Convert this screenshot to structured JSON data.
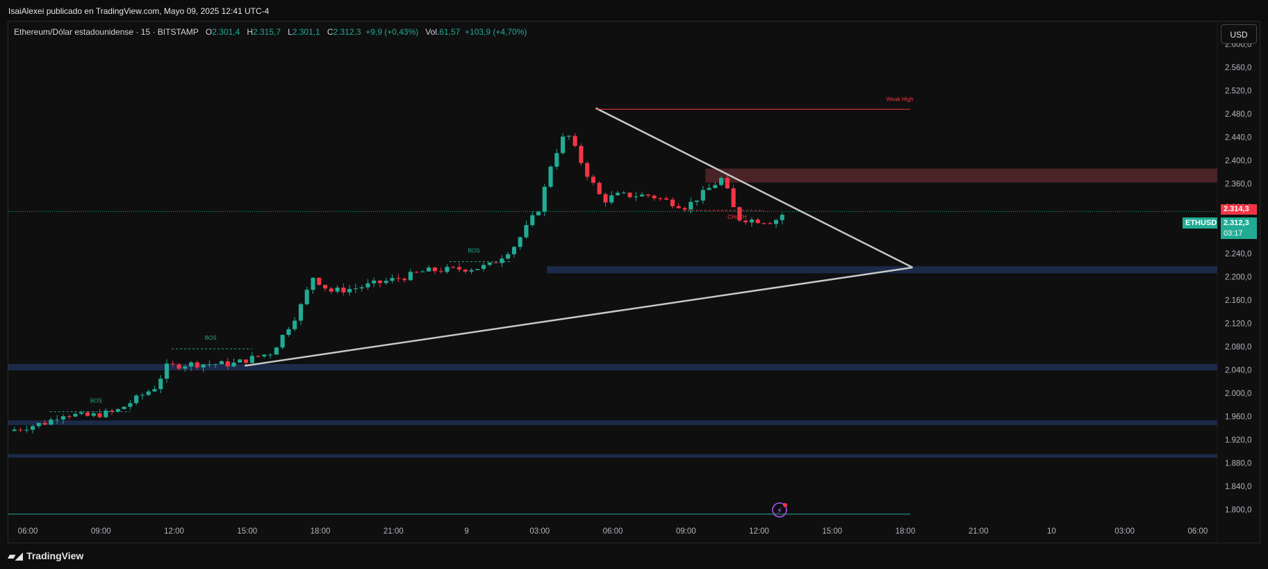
{
  "header": {
    "published_text": "IsaiAlexei publicado en TradingView.com, Mayo 09, 2025 12:41 UTC-4"
  },
  "legend": {
    "title": "Ethereum/Dólar estadounidense · 15 · BITSTAMP",
    "o_label": "O",
    "o_value": "2.301,4",
    "h_label": "H",
    "h_value": "2.315,7",
    "l_label": "L",
    "l_value": "2.301,1",
    "c_label": "C",
    "c_value": "2.312,3",
    "change": "+9,9 (+0,43%)",
    "vol_label": "Vol.",
    "vol_value": "61,57",
    "vol_change": "+103,9 (+4,70%)"
  },
  "currency_button": "USD",
  "price_tags": {
    "red_value": "2.314,3",
    "symbol": "ETHUSD",
    "last_value": "2.312,3",
    "countdown": "03:17"
  },
  "footer": {
    "brand": "TradingView"
  },
  "colors": {
    "up": "#22ab94",
    "down": "#f23645",
    "zone_blue": "#1c2a4a",
    "zone_red": "#4a2326",
    "trendline": "#c8c8c8"
  },
  "chart_data": {
    "type": "candlestick",
    "symbol": "ETHUSD",
    "interval": "15",
    "ylim": [
      1780,
      2640
    ],
    "y_ticks": [
      "2.600,0",
      "2.560,0",
      "2.520,0",
      "2.480,0",
      "2.440,0",
      "2.400,0",
      "2.360,0",
      "2.320,0",
      "2.280,0",
      "2.240,0",
      "2.200,0",
      "2.160,0",
      "2.120,0",
      "2.080,0",
      "2.040,0",
      "2.000,0",
      "1.960,0",
      "1.920,0",
      "1.880,0",
      "1.840,0",
      "1.800,0"
    ],
    "y_tick_values": [
      2600,
      2560,
      2520,
      2480,
      2440,
      2400,
      2360,
      2320,
      2280,
      2240,
      2200,
      2160,
      2120,
      2080,
      2040,
      2000,
      1960,
      1920,
      1880,
      1840,
      1800
    ],
    "x_ticks": [
      "06:00",
      "09:00",
      "12:00",
      "15:00",
      "18:00",
      "21:00",
      "9",
      "03:00",
      "06:00",
      "09:00",
      "12:00",
      "15:00",
      "18:00",
      "21:00",
      "10",
      "03:00",
      "06:00"
    ],
    "x_tick_hours": [
      6,
      9,
      12,
      15,
      18,
      21,
      24,
      27,
      30,
      33,
      36,
      39,
      42,
      45,
      48,
      51,
      54
    ],
    "x_range_hours": [
      5.2,
      54.8
    ],
    "close_path_hours": [
      5.2,
      6.8,
      7.4,
      8.4,
      9.6,
      11.2,
      11.7,
      12.6,
      14.4,
      15.2,
      16,
      17.1,
      17.7,
      18.4,
      19.4,
      21.5,
      22.3,
      24.4,
      25,
      26,
      27,
      27.5,
      28.1,
      28.9,
      29.6,
      30.1,
      30.5,
      31.5,
      33,
      34.5,
      35.1,
      36.6,
      37.1
    ],
    "close_path_values": [
      1935,
      1950,
      1965,
      1960,
      1968,
      2010,
      2045,
      2050,
      2050,
      2060,
      2070,
      2140,
      2200,
      2175,
      2180,
      2200,
      2210,
      2215,
      2220,
      2255,
      2320,
      2400,
      2450,
      2380,
      2330,
      2340,
      2340,
      2340,
      2320,
      2370,
      2300,
      2295,
      2312.3
    ],
    "candle_step_hours": 0.25,
    "last_price": 2312.3,
    "zones": [
      {
        "kind": "supply",
        "from_hours": 33.8,
        "y_low": 2362,
        "y_high": 2386
      },
      {
        "kind": "demand",
        "from_hours": 27.3,
        "y_low": 2206,
        "y_high": 2218
      },
      {
        "kind": "demand",
        "from_hours": 5.2,
        "y_low": 2039,
        "y_high": 2050
      },
      {
        "kind": "demand",
        "from_hours": 5.2,
        "y_low": 1945,
        "y_high": 1953
      },
      {
        "kind": "demand",
        "from_hours": 5.2,
        "y_low": 1889,
        "y_high": 1895
      }
    ],
    "trendlines": [
      {
        "from": [
          29.3,
          2490
        ],
        "to": [
          42.3,
          2216
        ]
      },
      {
        "from": [
          14.9,
          2047
        ],
        "to": [
          42.3,
          2216
        ]
      }
    ],
    "weak_high": {
      "label": "Weak High",
      "value": 2488,
      "from_hours": 29.3,
      "to_hours": 42.2
    },
    "bos_labels": [
      {
        "label": "BOS",
        "x_hours": 8.8,
        "value": 1968,
        "line_from": 6.9,
        "line_to": 10.2
      },
      {
        "label": "BOS",
        "x_hours": 13.5,
        "value": 2076,
        "line_from": 11.9,
        "line_to": 15.2
      },
      {
        "label": "BOS",
        "x_hours": 24.3,
        "value": 2226,
        "line_from": 23.3,
        "line_to": 25.8
      }
    ],
    "choch": {
      "label": "CHoCH",
      "x_hours": 35.1,
      "value": 2314,
      "line_from": 32.9,
      "line_to": 36.2
    },
    "bottom_line": {
      "from_hours": 5.2,
      "to_hours": 42.2
    }
  }
}
